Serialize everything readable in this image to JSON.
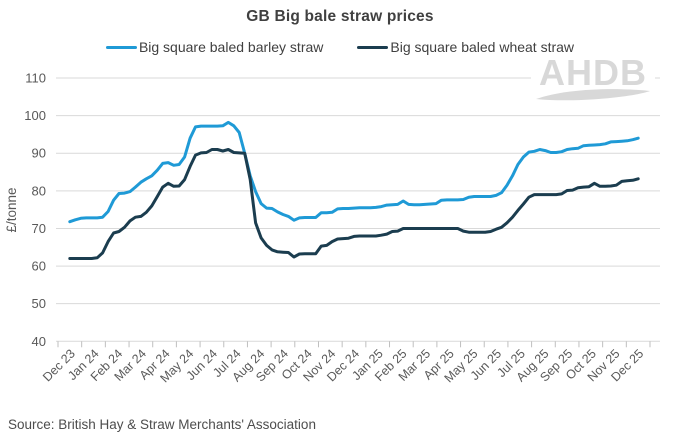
{
  "title": "GB Big bale straw prices",
  "watermark": "AHDB",
  "source": "Source: British Hay & Straw Merchants' Association",
  "legend": [
    {
      "label": "Big square baled barley straw",
      "color": "#1f9ad6"
    },
    {
      "label": "Big square baled wheat straw",
      "color": "#1b3d4f"
    }
  ],
  "colors": {
    "barley_line": "#1f9ad6",
    "wheat_line": "#1b3d4f",
    "gridline": "#d9d9d9",
    "axis": "#bfbfbf",
    "tick_label": "#595959",
    "title_text": "#404040",
    "watermark": "#d8d8d8"
  },
  "chart_data": {
    "type": "line",
    "title": "GB Big bale straw prices",
    "xlabel": "",
    "ylabel": "£/tonne",
    "ylim": [
      40,
      110
    ],
    "yticks": [
      110,
      100,
      90,
      80,
      70,
      60,
      50,
      40
    ],
    "grid": "horizontal",
    "legend_position": "top",
    "x_tick_labels": [
      "Dec 23",
      "Jan 24",
      "Feb 24",
      "Mar 24",
      "Apr 24",
      "May 24",
      "Jun 24",
      "Jul 24",
      "Aug 24",
      "Sep 24",
      "Oct 24",
      "Nov 24",
      "Dec 24",
      "Jan 25",
      "Feb 25",
      "Mar 25",
      "Apr 25",
      "May 25",
      "Jun 25",
      "Jul 25",
      "Aug 25",
      "Sep 25",
      "Oct 25",
      "Nov 25",
      "Dec 25"
    ],
    "x_frequency": "weekly",
    "series": [
      {
        "name": "Big square baled barley straw",
        "color": "#1f9ad6",
        "values": [
          71.8,
          72.3,
          72.7,
          72.8,
          72.8,
          72.8,
          73,
          74.5,
          77.5,
          79.3,
          79.4,
          79.8,
          81,
          82.3,
          83.2,
          84,
          85.5,
          87.3,
          87.5,
          86.8,
          87,
          89,
          94,
          97,
          97.2,
          97.2,
          97.2,
          97.2,
          97.3,
          98.2,
          97.3,
          95.5,
          90,
          84,
          79.8,
          76.6,
          75.4,
          75.3,
          74.4,
          73.7,
          73.2,
          72.2,
          72.8,
          72.9,
          72.9,
          72.9,
          74.2,
          74.2,
          74.3,
          75.2,
          75.3,
          75.3,
          75.4,
          75.5,
          75.5,
          75.5,
          75.6,
          75.8,
          76.2,
          76.3,
          76.4,
          77.3,
          76.4,
          76.3,
          76.3,
          76.4,
          76.5,
          76.6,
          77.5,
          77.6,
          77.6,
          77.6,
          77.7,
          78.3,
          78.5,
          78.5,
          78.5,
          78.5,
          78.8,
          79.5,
          81.5,
          84,
          87,
          89,
          90.3,
          90.5,
          91,
          90.7,
          90.2,
          90.2,
          90.4,
          91,
          91.2,
          91.3,
          92,
          92.1,
          92.2,
          92.3,
          92.5,
          93,
          93.1,
          93.2,
          93.3,
          93.6,
          94
        ]
      },
      {
        "name": "Big square baled wheat straw",
        "color": "#1b3d4f",
        "values": [
          62,
          62,
          62,
          62,
          62,
          62.2,
          63.5,
          66.5,
          68.8,
          69.2,
          70.3,
          72,
          73,
          73.2,
          74.3,
          76,
          78.5,
          81,
          82,
          81.2,
          81.3,
          83,
          86.5,
          89.5,
          90.1,
          90.2,
          91,
          91,
          90.6,
          91,
          90.2,
          90.1,
          90,
          83,
          71.5,
          67.5,
          65.5,
          64.3,
          63.8,
          63.7,
          63.6,
          62.4,
          63.2,
          63.3,
          63.3,
          63.3,
          65.3,
          65.5,
          66.5,
          67.2,
          67.3,
          67.4,
          67.9,
          68,
          68,
          68,
          68,
          68.2,
          68.5,
          69.2,
          69.3,
          70,
          70,
          70,
          70,
          70,
          70,
          70,
          70,
          70,
          70,
          70,
          69.3,
          69,
          69,
          69,
          69,
          69.2,
          69.8,
          70.3,
          71.5,
          73,
          74.8,
          76.5,
          78.3,
          79,
          79,
          79,
          79,
          79,
          79.2,
          80.1,
          80.2,
          80.8,
          81,
          81.1,
          82,
          81.2,
          81.2,
          81.3,
          81.5,
          82.5,
          82.7,
          82.8,
          83.2
        ]
      }
    ]
  }
}
